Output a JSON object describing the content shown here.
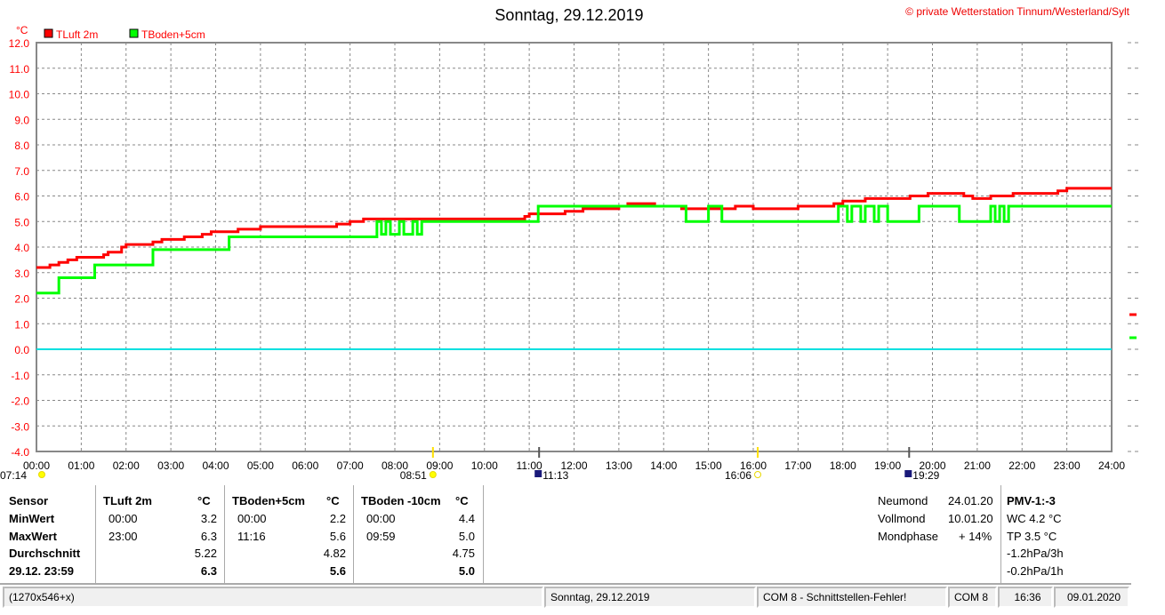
{
  "header": {
    "title": "Sonntag, 29.12.2019",
    "copyright": "© private Wetterstation Tinnum/Westerland/Sylt"
  },
  "chart_data": {
    "type": "line",
    "title": "Sonntag, 29.12.2019",
    "ylabel": "°C",
    "ylim": [
      -4,
      12
    ],
    "xlim": [
      0,
      24
    ],
    "grid": true,
    "legend_placement": "top-left",
    "y_ticks": [
      "12.0",
      "11.0",
      "10.0",
      "9.0",
      "8.0",
      "7.0",
      "6.0",
      "5.0",
      "4.0",
      "3.0",
      "2.0",
      "1.0",
      "0.0",
      "-1.0",
      "-2.0",
      "-3.0",
      "-4.0"
    ],
    "x_ticks": [
      "00:00",
      "01:00",
      "02:00",
      "03:00",
      "04:00",
      "05:00",
      "06:00",
      "07:00",
      "08:00",
      "09:00",
      "10:00",
      "11:00",
      "12:00",
      "13:00",
      "14:00",
      "15:00",
      "16:00",
      "17:00",
      "18:00",
      "19:00",
      "20:00",
      "21:00",
      "22:00",
      "23:00",
      "24:00"
    ],
    "series": [
      {
        "name": "TLuft 2m",
        "color": "#ff0000",
        "step": true,
        "points": [
          [
            0,
            3.2
          ],
          [
            0.3,
            3.3
          ],
          [
            0.5,
            3.4
          ],
          [
            0.7,
            3.5
          ],
          [
            0.9,
            3.6
          ],
          [
            1.5,
            3.7
          ],
          [
            1.6,
            3.8
          ],
          [
            1.9,
            4.0
          ],
          [
            2.0,
            4.1
          ],
          [
            2.6,
            4.2
          ],
          [
            2.8,
            4.3
          ],
          [
            3.3,
            4.4
          ],
          [
            3.7,
            4.5
          ],
          [
            3.9,
            4.6
          ],
          [
            4.5,
            4.7
          ],
          [
            5.0,
            4.8
          ],
          [
            6.7,
            4.9
          ],
          [
            7.0,
            5.0
          ],
          [
            7.3,
            5.1
          ],
          [
            8.0,
            5.1
          ],
          [
            10.9,
            5.2
          ],
          [
            11.0,
            5.3
          ],
          [
            11.8,
            5.4
          ],
          [
            12.2,
            5.5
          ],
          [
            13.0,
            5.6
          ],
          [
            13.2,
            5.7
          ],
          [
            13.8,
            5.6
          ],
          [
            14.4,
            5.5
          ],
          [
            15.0,
            5.5
          ],
          [
            15.6,
            5.6
          ],
          [
            16.0,
            5.5
          ],
          [
            16.6,
            5.5
          ],
          [
            17.0,
            5.6
          ],
          [
            17.8,
            5.7
          ],
          [
            18.0,
            5.8
          ],
          [
            18.5,
            5.9
          ],
          [
            19.5,
            6.0
          ],
          [
            19.9,
            6.1
          ],
          [
            20.7,
            6.0
          ],
          [
            20.9,
            5.9
          ],
          [
            21.3,
            6.0
          ],
          [
            21.8,
            6.1
          ],
          [
            22.8,
            6.2
          ],
          [
            23.0,
            6.3
          ],
          [
            24,
            6.3
          ]
        ]
      },
      {
        "name": "TBoden+5cm",
        "color": "#00ff00",
        "step": true,
        "points": [
          [
            0,
            2.2
          ],
          [
            0.5,
            2.8
          ],
          [
            1.3,
            3.3
          ],
          [
            2.6,
            3.9
          ],
          [
            4.3,
            4.4
          ],
          [
            7.6,
            5.0
          ],
          [
            7.7,
            4.5
          ],
          [
            7.8,
            5.0
          ],
          [
            7.9,
            4.5
          ],
          [
            8.1,
            5.0
          ],
          [
            8.2,
            4.5
          ],
          [
            8.4,
            5.0
          ],
          [
            8.5,
            4.5
          ],
          [
            8.6,
            5.0
          ],
          [
            11.2,
            5.6
          ],
          [
            14.5,
            5.0
          ],
          [
            15.0,
            5.6
          ],
          [
            15.3,
            5.0
          ],
          [
            17.9,
            5.6
          ],
          [
            18.1,
            5.0
          ],
          [
            18.2,
            5.6
          ],
          [
            18.4,
            5.0
          ],
          [
            18.5,
            5.6
          ],
          [
            18.7,
            5.0
          ],
          [
            18.8,
            5.6
          ],
          [
            19.0,
            5.0
          ],
          [
            19.7,
            5.6
          ],
          [
            20.6,
            5.0
          ],
          [
            21.3,
            5.6
          ],
          [
            21.4,
            5.0
          ],
          [
            21.5,
            5.6
          ],
          [
            21.6,
            5.0
          ],
          [
            21.7,
            5.6
          ],
          [
            24,
            5.6
          ]
        ]
      },
      {
        "name": "zero",
        "color": "#00e0e0",
        "step": false,
        "points": [
          [
            0,
            0
          ],
          [
            24,
            0
          ]
        ]
      }
    ]
  },
  "astro": [
    {
      "time": "07:14",
      "hour": 7.23,
      "icon": "dawn-icon"
    },
    {
      "time": "08:51",
      "hour": 8.85,
      "icon": "sunrise-icon"
    },
    {
      "time": "11:13",
      "hour": 11.22,
      "icon": "moonrise-icon"
    },
    {
      "time": "16:06",
      "hour": 16.1,
      "icon": "sunset-icon"
    },
    {
      "time": "19:29",
      "hour": 19.48,
      "icon": "moonset-icon"
    }
  ],
  "table": {
    "row_labels": [
      "Sensor",
      "MinWert",
      "MaxWert",
      "Durchschnitt",
      "29.12. 23:59"
    ],
    "columns": [
      {
        "name": "TLuft 2m",
        "unit": "°C",
        "min_time": "00:00",
        "min": "3.2",
        "max_time": "23:00",
        "max": "6.3",
        "avg": "5.22",
        "current": "6.3"
      },
      {
        "name": "TBoden+5cm",
        "unit": "°C",
        "min_time": "00:00",
        "min": "2.2",
        "max_time": "11:16",
        "max": "5.6",
        "avg": "4.82",
        "current": "5.6"
      },
      {
        "name": "TBoden -10cm",
        "unit": "°C",
        "min_time": "00:00",
        "min": "4.4",
        "max_time": "09:59",
        "max": "5.0",
        "avg": "4.75",
        "current": "5.0"
      }
    ]
  },
  "moon": {
    "neumond_label": "Neumond",
    "neumond": "24.01.20",
    "vollmond_label": "Vollmond",
    "vollmond": "10.01.20",
    "phase_label": "Mondphase",
    "phase": "+ 14%"
  },
  "pmv": {
    "title": "PMV-1:-3",
    "wc": "WC 4.2 °C",
    "tp": "TP 3.5 °C",
    "p3h": "-1.2hPa/3h",
    "p1h": "-0.2hPa/1h"
  },
  "statusbar": {
    "size": "(1270x546+x)",
    "date": "Sonntag, 29.12.2019",
    "com_error": "COM 8 - Schnittstellen-Fehler!",
    "com": "COM 8",
    "time": "16:36",
    "today": "09.01.2020"
  }
}
